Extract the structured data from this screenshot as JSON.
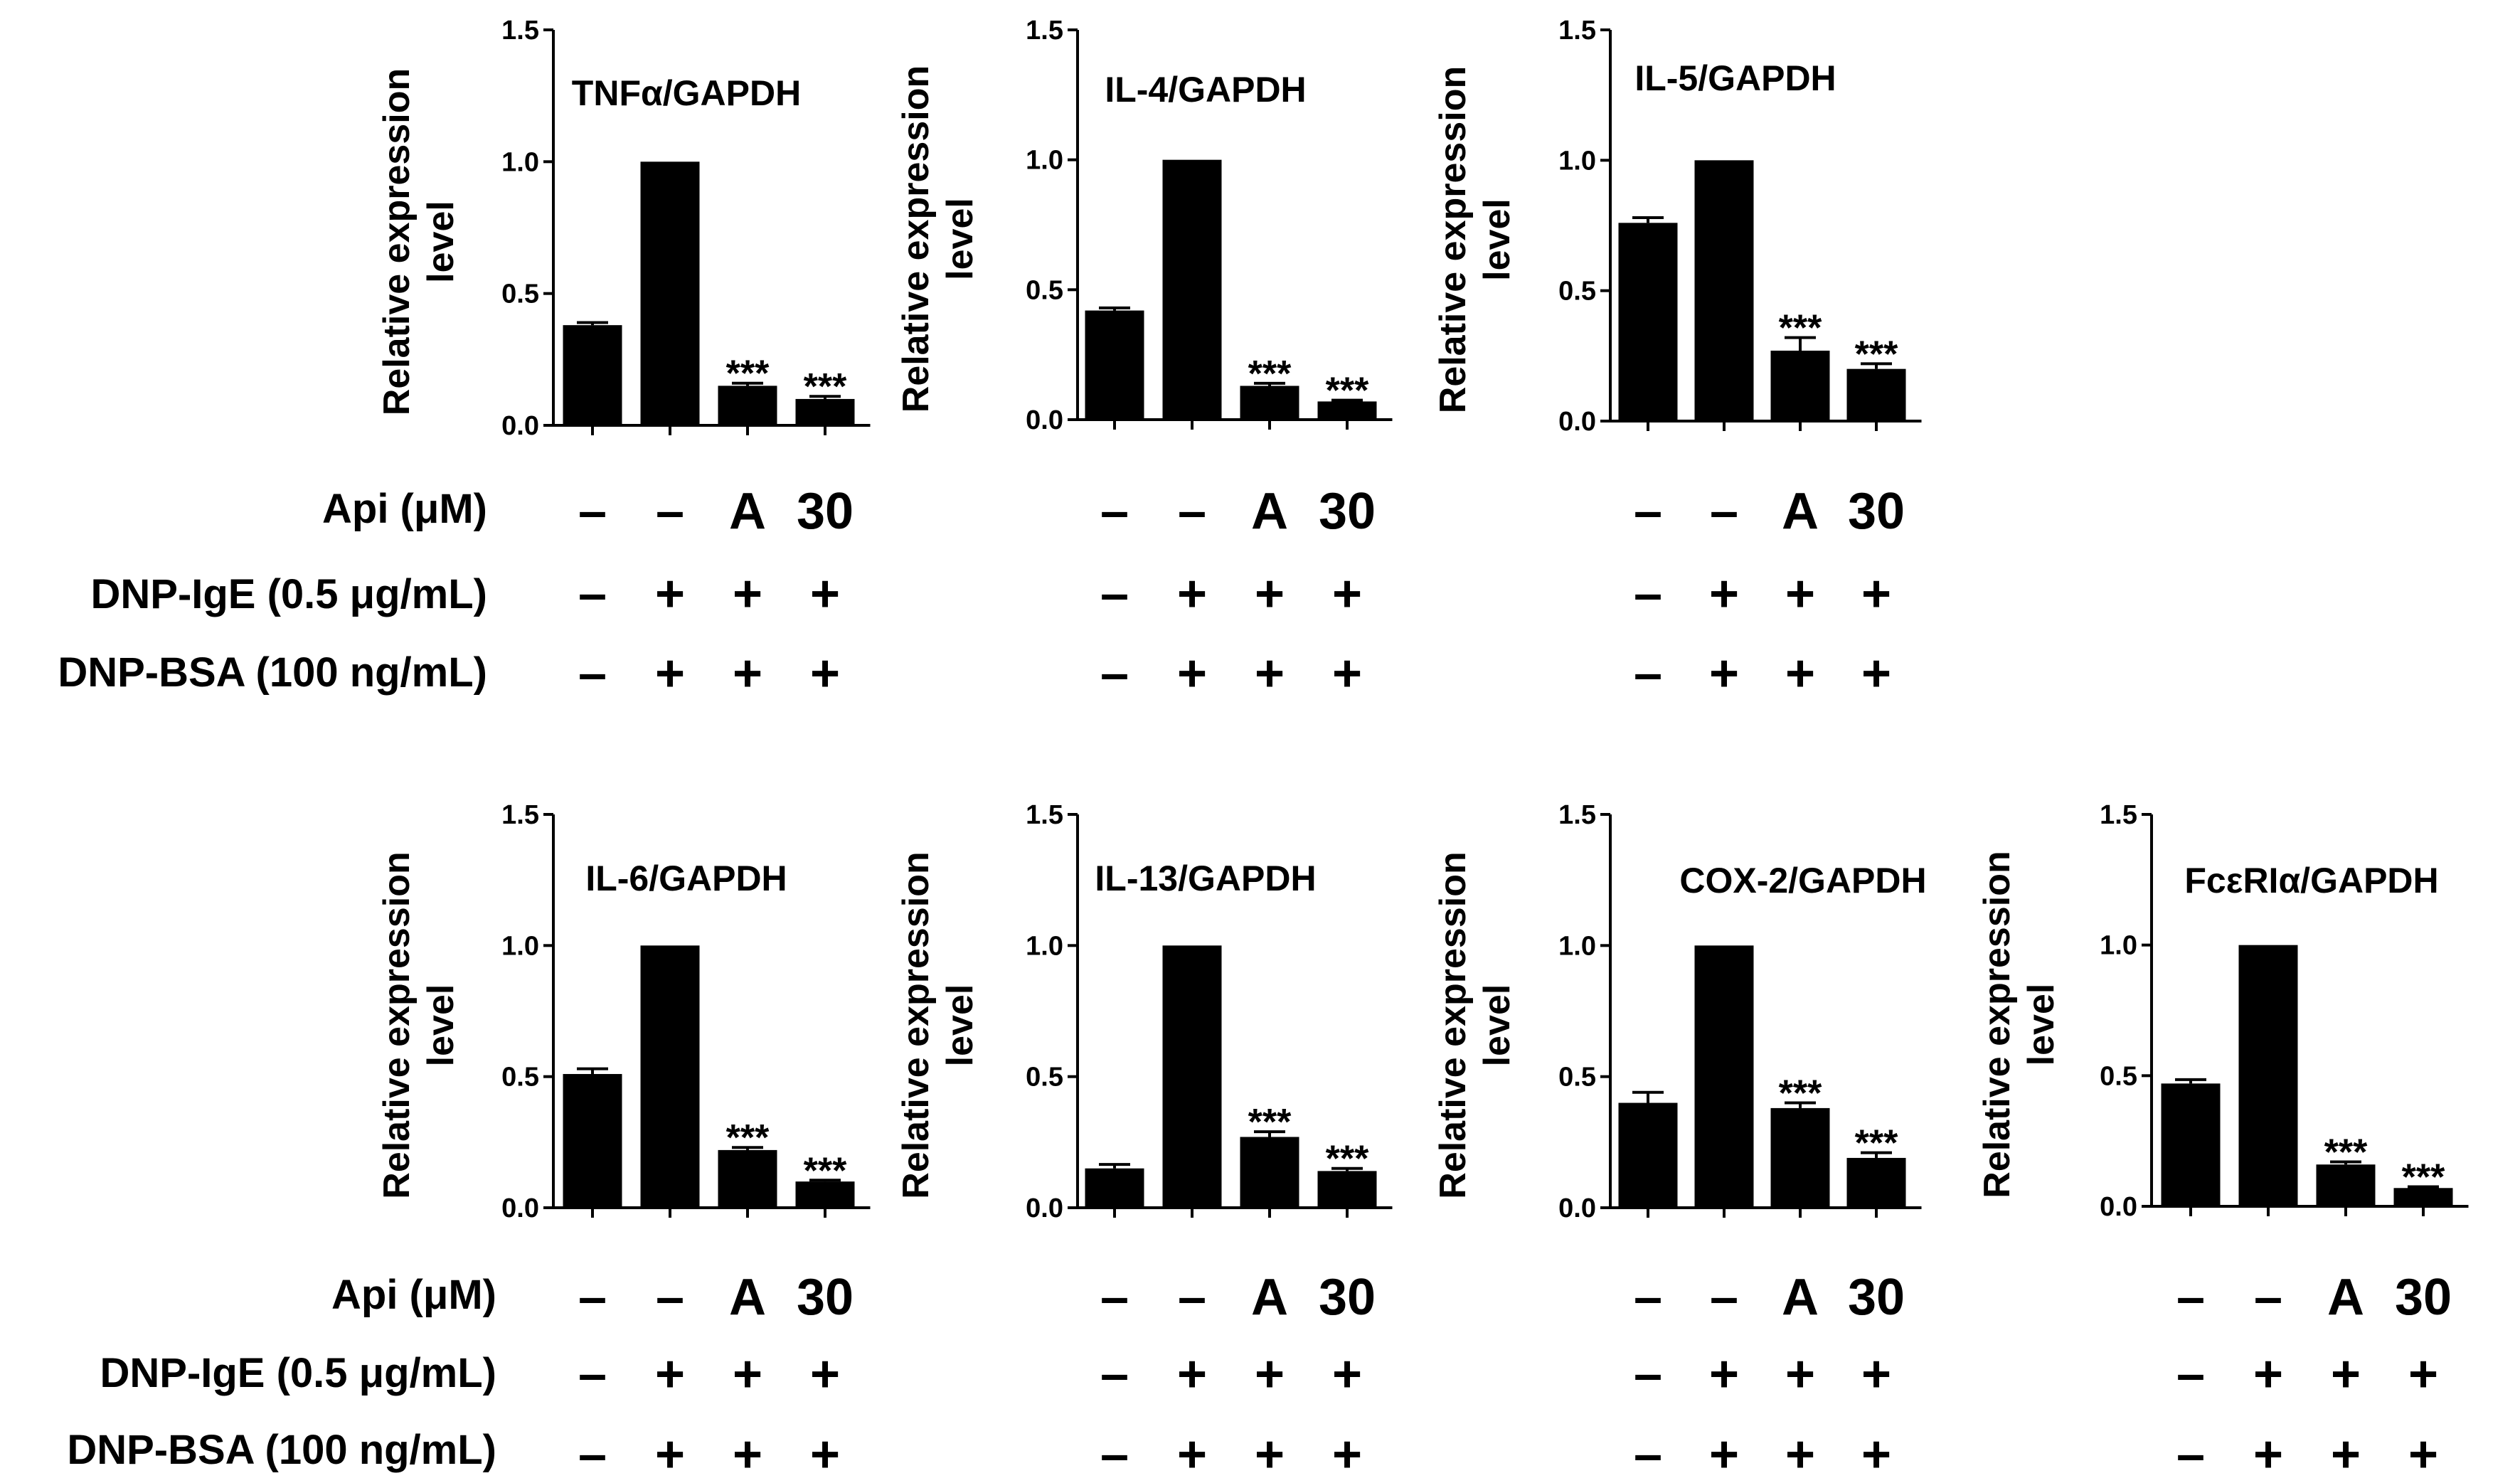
{
  "conditions": {
    "row_labels": [
      "Api (μM)",
      "DNP-IgE (0.5 μg/mL)",
      "DNP-BSA (100 ng/mL)"
    ],
    "values": [
      [
        "–",
        "–",
        "A",
        "30"
      ],
      [
        "–",
        "+",
        "+",
        "+"
      ],
      [
        "–",
        "+",
        "+",
        "+"
      ]
    ]
  },
  "chart_data": [
    {
      "type": "bar",
      "title": "TNFα/GAPDH",
      "ylabel": "Relative expression level",
      "ylim": [
        0,
        1.5
      ],
      "yticks": [
        "0.0",
        "0.5",
        "1.0",
        "1.5"
      ],
      "values": [
        0.38,
        1.0,
        0.15,
        0.1
      ],
      "errors": [
        0.01,
        0,
        0.01,
        0.01
      ],
      "significance": [
        "",
        "",
        "***",
        "***"
      ],
      "bar_color": "#000000"
    },
    {
      "type": "bar",
      "title": "IL-4/GAPDH",
      "ylabel": "Relative expression level",
      "ylim": [
        0,
        1.5
      ],
      "yticks": [
        "0.0",
        "0.5",
        "1.0",
        "1.5"
      ],
      "values": [
        0.42,
        1.0,
        0.13,
        0.07
      ],
      "errors": [
        0.01,
        0,
        0.01,
        0.005
      ],
      "significance": [
        "",
        "",
        "***",
        "***"
      ],
      "bar_color": "#000000"
    },
    {
      "type": "bar",
      "title": "IL-5/GAPDH",
      "ylabel": "Relative expression level",
      "ylim": [
        0,
        1.5
      ],
      "yticks": [
        "0.0",
        "0.5",
        "1.0",
        "1.5"
      ],
      "values": [
        0.76,
        1.0,
        0.27,
        0.2
      ],
      "errors": [
        0.02,
        0,
        0.05,
        0.02
      ],
      "significance": [
        "",
        "",
        "***",
        "***"
      ],
      "bar_color": "#000000"
    },
    {
      "type": "bar",
      "title": "IL-6/GAPDH",
      "ylabel": "Relative expression level",
      "ylim": [
        0,
        1.5
      ],
      "yticks": [
        "0.0",
        "0.5",
        "1.0",
        "1.5"
      ],
      "values": [
        0.51,
        1.0,
        0.22,
        0.1
      ],
      "errors": [
        0.02,
        0,
        0.01,
        0.005
      ],
      "significance": [
        "",
        "",
        "***",
        "***"
      ],
      "bar_color": "#000000"
    },
    {
      "type": "bar",
      "title": "IL-13/GAPDH",
      "ylabel": "Relative expression level",
      "ylim": [
        0,
        1.5
      ],
      "yticks": [
        "0.0",
        "0.5",
        "1.0",
        "1.5"
      ],
      "values": [
        0.15,
        1.0,
        0.27,
        0.14
      ],
      "errors": [
        0.015,
        0,
        0.02,
        0.01
      ],
      "significance": [
        "",
        "",
        "***",
        "***"
      ],
      "bar_color": "#000000"
    },
    {
      "type": "bar",
      "title": "COX-2/GAPDH",
      "ylabel": "Relative expression level",
      "ylim": [
        0,
        1.5
      ],
      "yticks": [
        "0.0",
        "0.5",
        "1.0",
        "1.5"
      ],
      "values": [
        0.4,
        1.0,
        0.38,
        0.19
      ],
      "errors": [
        0.04,
        0,
        0.02,
        0.02
      ],
      "significance": [
        "",
        "",
        "***",
        "***"
      ],
      "bar_color": "#000000"
    },
    {
      "type": "bar",
      "title": "FcεRIα/GAPDH",
      "ylabel": "Relative expression level",
      "ylim": [
        0,
        1.5
      ],
      "yticks": [
        "0.0",
        "0.5",
        "1.0",
        "1.5"
      ],
      "values": [
        0.47,
        1.0,
        0.16,
        0.07
      ],
      "errors": [
        0.015,
        0,
        0.01,
        0.005
      ],
      "significance": [
        "",
        "",
        "***",
        "***"
      ],
      "bar_color": "#000000"
    }
  ]
}
